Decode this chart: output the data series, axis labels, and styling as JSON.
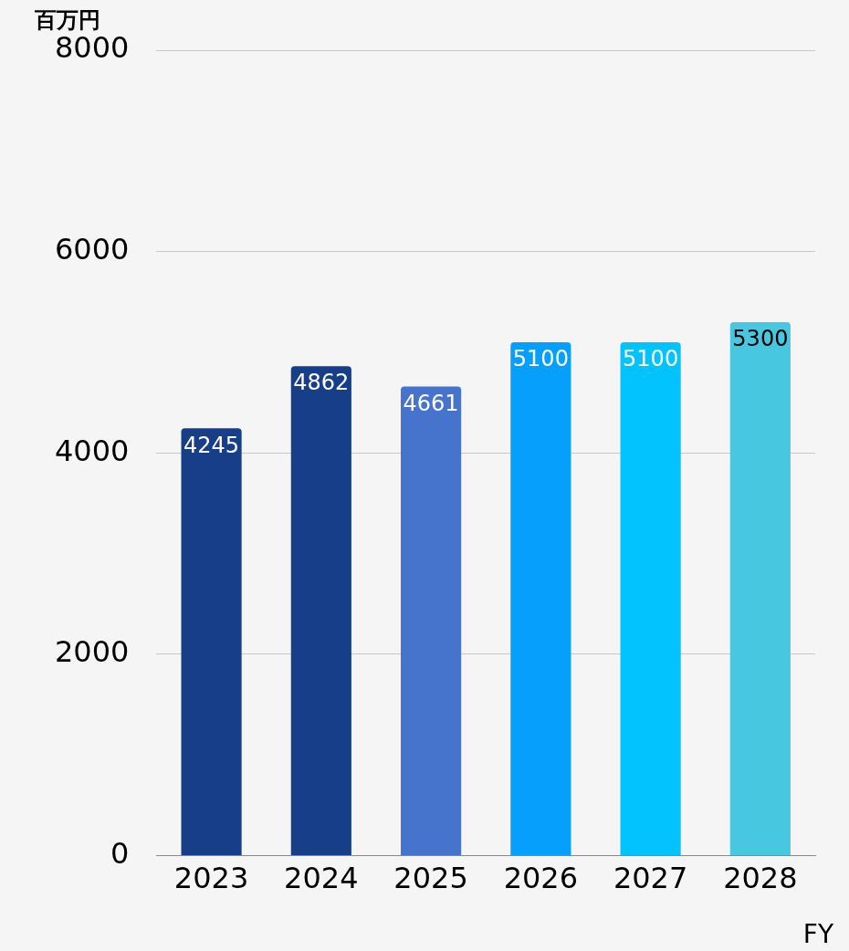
{
  "chart_data": {
    "type": "bar",
    "ylabel": "百万円",
    "xlabel": "FY",
    "categories": [
      "2023",
      "2024",
      "2025",
      "2026",
      "2027",
      "2028"
    ],
    "values": [
      4245,
      4862,
      4661,
      5100,
      5100,
      5300
    ],
    "colors": [
      "#173e88",
      "#173e88",
      "#4674cc",
      "#069ffc",
      "#03c3fe",
      "#48c8e0"
    ],
    "ylim": [
      0,
      8000
    ],
    "yticks": [
      0,
      2000,
      4000,
      6000,
      8000
    ],
    "grid": "y",
    "data_labels": true
  }
}
